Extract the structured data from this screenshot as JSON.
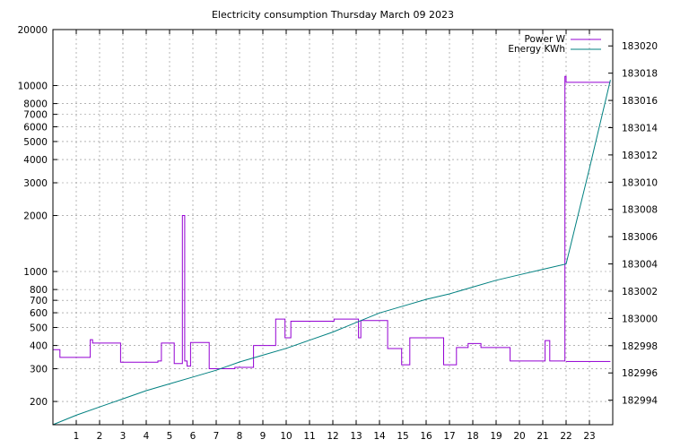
{
  "chart_data": {
    "type": "line",
    "title": "Electricity consumption Thursday March 09 2023",
    "xlabel": "",
    "ylabel": "",
    "y2label": "",
    "grid": true,
    "legend_position": "top-right",
    "xlim": [
      0,
      24
    ],
    "ylim": [
      150,
      20000
    ],
    "y_scale": "log",
    "y2lim": [
      182992.2,
      183021.2
    ],
    "x_ticks": [
      1,
      2,
      3,
      4,
      5,
      6,
      7,
      8,
      9,
      10,
      11,
      12,
      13,
      14,
      15,
      16,
      17,
      18,
      19,
      20,
      21,
      22,
      23
    ],
    "y_ticks": [
      200,
      300,
      400,
      500,
      600,
      700,
      800,
      1000,
      2000,
      3000,
      4000,
      5000,
      6000,
      7000,
      8000,
      10000,
      20000
    ],
    "y2_ticks": [
      182994,
      182996,
      182998,
      183000,
      183002,
      183004,
      183006,
      183008,
      183010,
      183012,
      183014,
      183016,
      183018,
      183020
    ],
    "series": [
      {
        "name": "Power W",
        "color": "#9400d3",
        "axis": "left",
        "x": [
          0,
          0.3,
          0.3,
          1.6,
          1.6,
          1.7,
          1.7,
          2.9,
          2.9,
          4.5,
          4.5,
          4.65,
          4.65,
          5.2,
          5.2,
          5.55,
          5.55,
          5.65,
          5.65,
          5.75,
          5.75,
          5.9,
          5.9,
          6.7,
          6.7,
          7.8,
          7.8,
          8.6,
          8.6,
          9.55,
          9.55,
          9.95,
          9.95,
          10.2,
          10.2,
          12.05,
          12.05,
          13.1,
          13.1,
          13.2,
          13.2,
          14.35,
          14.35,
          14.95,
          14.95,
          15.3,
          15.3,
          16.75,
          16.75,
          17.3,
          17.3,
          17.8,
          17.8,
          18.35,
          18.35,
          19.6,
          19.6,
          21.1,
          21.1,
          21.3,
          21.3,
          21.95,
          21.95,
          22.0,
          22.0,
          23.9
        ],
        "y": [
          380,
          380,
          345,
          345,
          430,
          430,
          412,
          412,
          325,
          325,
          330,
          330,
          412,
          412,
          320,
          320,
          2000,
          2000,
          330,
          330,
          310,
          310,
          415,
          415,
          300,
          300,
          305,
          305,
          400,
          400,
          555,
          555,
          440,
          440,
          540,
          540,
          555,
          555,
          440,
          440,
          545,
          545,
          385,
          385,
          315,
          315,
          440,
          440,
          315,
          315,
          390,
          390,
          410,
          410,
          390,
          390,
          330,
          330,
          425,
          425,
          330,
          330,
          11200,
          11200,
          10400,
          10400
        ]
      },
      {
        "name": "Energy KWh",
        "color": "#008080",
        "axis": "right",
        "x": [
          0,
          1,
          2,
          3,
          4,
          5,
          6,
          7,
          8,
          9,
          10,
          11,
          12,
          13,
          14,
          15,
          16,
          17,
          18,
          19,
          20,
          21,
          22,
          23,
          23.9
        ],
        "y": [
          182992.2,
          182992.9,
          182993.5,
          182994.1,
          182994.7,
          182995.2,
          182995.7,
          182996.2,
          182996.8,
          182997.3,
          182997.8,
          182998.4,
          182999.0,
          182999.7,
          183000.4,
          183000.9,
          183001.4,
          183001.8,
          183002.3,
          183002.8,
          183003.2,
          183003.6,
          183004.0,
          183011.0,
          183017.5
        ]
      }
    ]
  }
}
